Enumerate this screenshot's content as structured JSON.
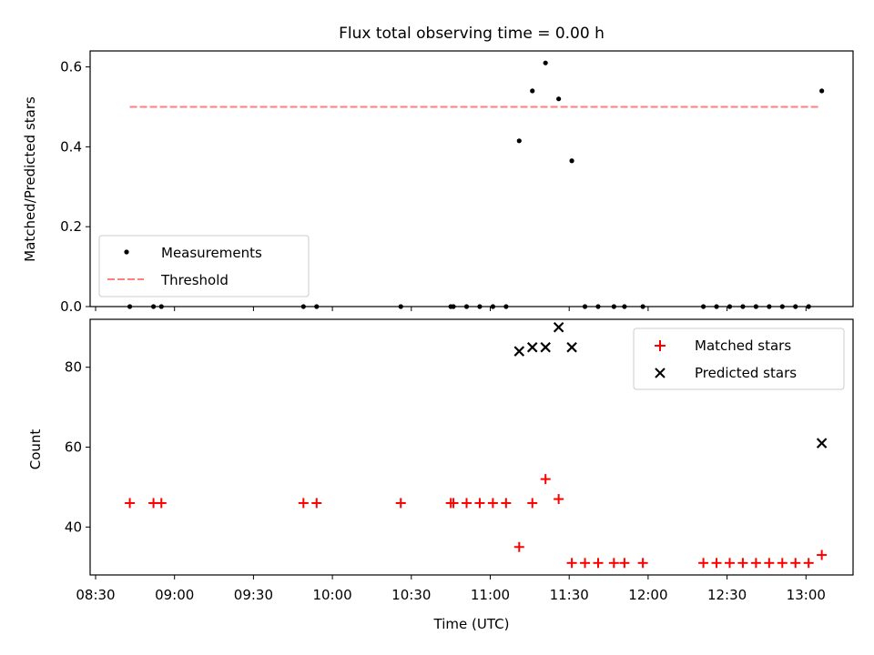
{
  "chart_data": {
    "title": "Flux total observing time = 0.00 h",
    "x_ticks": [
      "08:30",
      "09:00",
      "09:30",
      "10:00",
      "10:30",
      "11:00",
      "11:30",
      "12:00",
      "12:30",
      "13:00"
    ],
    "xlabel": "Time (UTC)",
    "top": {
      "type": "scatter",
      "ylabel": "Matched/Predicted stars",
      "ylim": [
        0,
        0.64
      ],
      "yticks": [
        "0.0",
        "0.2",
        "0.4",
        "0.6"
      ],
      "legend": {
        "placement": "lower-left",
        "measurements": "Measurements",
        "threshold": "Threshold"
      },
      "threshold": {
        "value": 0.5,
        "x_start": "08:43",
        "x_end": "13:05",
        "color": "#ff7f7f"
      },
      "measurements": [
        [
          "08:43",
          0
        ],
        [
          "08:52",
          0
        ],
        [
          "08:55",
          0
        ],
        [
          "09:49",
          0
        ],
        [
          "09:54",
          0
        ],
        [
          "10:26",
          0
        ],
        [
          "10:45",
          0
        ],
        [
          "10:46",
          0
        ],
        [
          "10:51",
          0
        ],
        [
          "10:56",
          0
        ],
        [
          "11:01",
          0
        ],
        [
          "11:06",
          0
        ],
        [
          "11:11",
          0.415
        ],
        [
          "11:16",
          0.54
        ],
        [
          "11:21",
          0.61
        ],
        [
          "11:26",
          0.52
        ],
        [
          "11:31",
          0.365
        ],
        [
          "11:36",
          0
        ],
        [
          "11:41",
          0
        ],
        [
          "11:47",
          0
        ],
        [
          "11:51",
          0
        ],
        [
          "11:58",
          0
        ],
        [
          "12:21",
          0
        ],
        [
          "12:26",
          0
        ],
        [
          "12:31",
          0
        ],
        [
          "12:36",
          0
        ],
        [
          "12:41",
          0
        ],
        [
          "12:46",
          0
        ],
        [
          "12:51",
          0
        ],
        [
          "12:56",
          0
        ],
        [
          "13:01",
          0
        ],
        [
          "13:06",
          0.54
        ]
      ]
    },
    "bottom": {
      "type": "scatter",
      "ylabel": "Count",
      "ylim": [
        28,
        92
      ],
      "yticks": [
        "40",
        "60",
        "80"
      ],
      "legend": {
        "placement": "top-right",
        "matched": "Matched stars",
        "predicted": "Predicted stars"
      },
      "matched_color": "#ff0000",
      "predicted_color": "#000000",
      "matched": [
        [
          "08:43",
          46
        ],
        [
          "08:52",
          46
        ],
        [
          "08:55",
          46
        ],
        [
          "09:49",
          46
        ],
        [
          "09:54",
          46
        ],
        [
          "10:26",
          46
        ],
        [
          "10:45",
          46
        ],
        [
          "10:46",
          46
        ],
        [
          "10:51",
          46
        ],
        [
          "10:56",
          46
        ],
        [
          "11:01",
          46
        ],
        [
          "11:06",
          46
        ],
        [
          "11:11",
          35
        ],
        [
          "11:16",
          46
        ],
        [
          "11:21",
          52
        ],
        [
          "11:26",
          47
        ],
        [
          "11:31",
          31
        ],
        [
          "11:36",
          31
        ],
        [
          "11:41",
          31
        ],
        [
          "11:47",
          31
        ],
        [
          "11:51",
          31
        ],
        [
          "11:58",
          31
        ],
        [
          "12:21",
          31
        ],
        [
          "12:26",
          31
        ],
        [
          "12:31",
          31
        ],
        [
          "12:36",
          31
        ],
        [
          "12:41",
          31
        ],
        [
          "12:46",
          31
        ],
        [
          "12:51",
          31
        ],
        [
          "12:56",
          31
        ],
        [
          "13:01",
          31
        ],
        [
          "13:06",
          33
        ]
      ],
      "predicted": [
        [
          "11:11",
          84
        ],
        [
          "11:16",
          85
        ],
        [
          "11:21",
          85
        ],
        [
          "11:26",
          90
        ],
        [
          "11:31",
          85
        ],
        [
          "13:06",
          61
        ]
      ]
    }
  }
}
